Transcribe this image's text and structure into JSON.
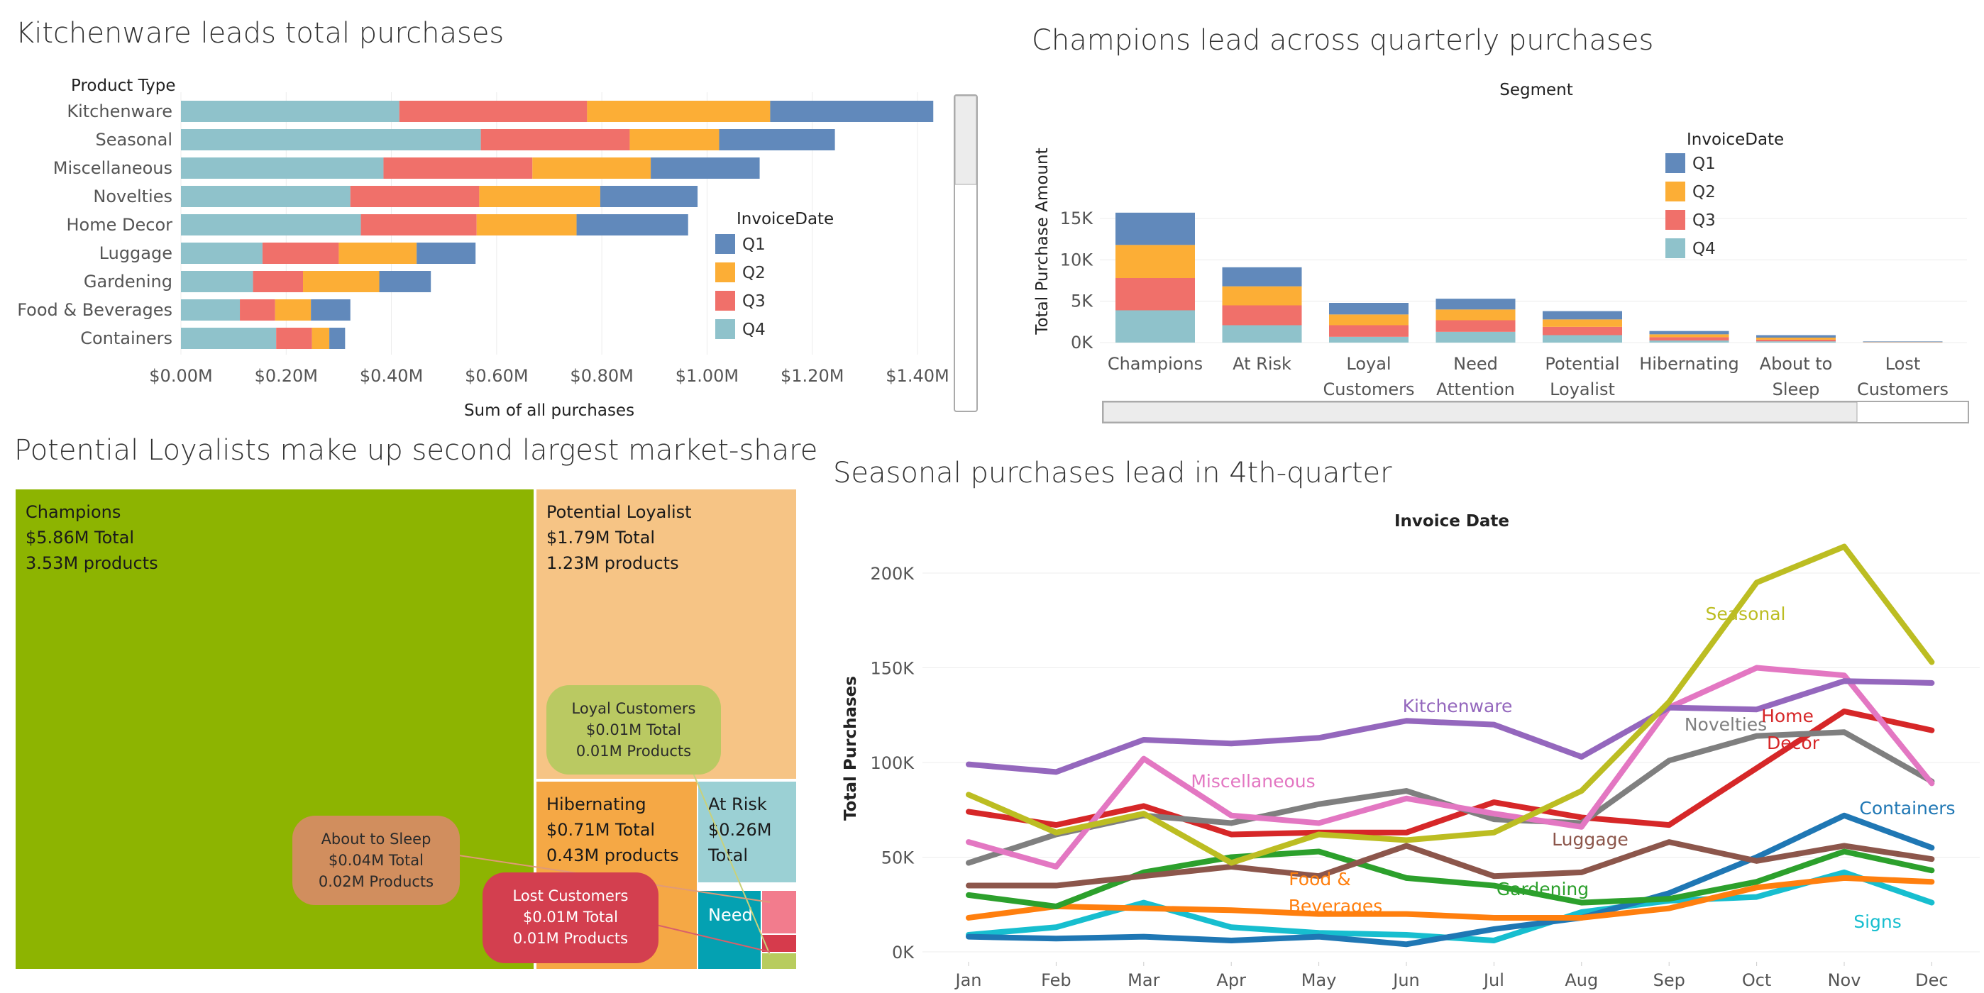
{
  "chart_data": [
    {
      "type": "bar",
      "orientation": "horizontal",
      "stacked": true,
      "title": "Kitchenware leads total purchases",
      "ylabel": "Product Type",
      "xlabel": "Sum of all purchases",
      "xlim": [
        0,
        1.4
      ],
      "xticks": [
        "$0.00M",
        "$0.20M",
        "$0.40M",
        "$0.60M",
        "$0.80M",
        "$1.00M",
        "$1.20M",
        "$1.40M"
      ],
      "legend_title": "InvoiceDate",
      "legend_position": "right",
      "categories": [
        "Kitchenware",
        "Seasonal",
        "Miscellaneous",
        "Novelties",
        "Home Decor",
        "Luggage",
        "Gardening",
        "Food & Beverages",
        "Containers"
      ],
      "series": [
        {
          "name": "Q4",
          "color": "#8fc2cb",
          "values": [
            0.415,
            0.57,
            0.385,
            0.322,
            0.342,
            0.155,
            0.137,
            0.112,
            0.181
          ]
        },
        {
          "name": "Q3",
          "color": "#f0706a",
          "values": [
            0.357,
            0.283,
            0.283,
            0.245,
            0.22,
            0.145,
            0.095,
            0.067,
            0.068
          ]
        },
        {
          "name": "Q2",
          "color": "#fcae36",
          "values": [
            0.348,
            0.17,
            0.225,
            0.23,
            0.19,
            0.148,
            0.145,
            0.068,
            0.033
          ]
        },
        {
          "name": "Q1",
          "color": "#6189bb",
          "values": [
            0.31,
            0.22,
            0.207,
            0.185,
            0.212,
            0.112,
            0.098,
            0.075,
            0.03
          ]
        }
      ],
      "legend_order": [
        "Q1",
        "Q2",
        "Q3",
        "Q4"
      ]
    },
    {
      "type": "bar",
      "stacked": true,
      "title": "Champions lead across quarterly purchases",
      "xlabel": "Segment",
      "ylabel": "Total Purchase Amount",
      "ylim": [
        0,
        16000
      ],
      "yticks": [
        "0K",
        "5K",
        "10K",
        "15K"
      ],
      "legend_title": "InvoiceDate",
      "legend_position": "top-right",
      "categories": [
        "Champions",
        "At Risk",
        "Loyal Customers",
        "Need Attention",
        "Potential Loyalist",
        "Hibernating",
        "About to Sleep",
        "Lost Customers"
      ],
      "series": [
        {
          "name": "Q4",
          "color": "#8fc2cb",
          "values": [
            3900,
            2100,
            700,
            1300,
            900,
            250,
            150,
            40
          ]
        },
        {
          "name": "Q3",
          "color": "#f0706a",
          "values": [
            3900,
            2400,
            1400,
            1400,
            1000,
            400,
            200,
            30
          ]
        },
        {
          "name": "Q2",
          "color": "#fcae36",
          "values": [
            4000,
            2300,
            1300,
            1300,
            900,
            350,
            250,
            30
          ]
        },
        {
          "name": "Q1",
          "color": "#6189bb",
          "values": [
            3900,
            2300,
            1400,
            1300,
            1000,
            400,
            300,
            50
          ]
        }
      ],
      "legend_order": [
        "Q1",
        "Q2",
        "Q3",
        "Q4"
      ]
    },
    {
      "type": "treemap",
      "title": "Potential Loyalists make up second largest market-share",
      "items": [
        {
          "label": "Champions",
          "line2": "$5.86M Total",
          "line3": "3.53M products",
          "color": "#8db401",
          "value": 5.86
        },
        {
          "label": "Potential Loyalist",
          "line2": "$1.79M Total",
          "line3": "1.23M products",
          "color": "#f6c485",
          "value": 1.79
        },
        {
          "label": "Hibernating",
          "line2": "$0.71M Total",
          "line3": "0.43M products",
          "color": "#f5a845",
          "value": 0.71
        },
        {
          "label": "At Risk",
          "line2": "$0.26M",
          "line3": "Total",
          "color": "#9bd0d4",
          "value": 0.26
        },
        {
          "label": "Need",
          "line2": "",
          "line3": "",
          "color": "#04a1b2",
          "value": 0.12
        },
        {
          "label": "Loyal Customers",
          "line2": "$0.01M Total",
          "line3": "0.01M Products",
          "color": "#bac962",
          "value": 0.01
        },
        {
          "label": "About to Sleep",
          "line2": "$0.04M Total",
          "line3": "0.02M Products",
          "color": "#d18e5e",
          "value": 0.04
        },
        {
          "label": "Lost Customers",
          "line2": "$0.01M Total",
          "line3": "0.01M Products",
          "color": "#d33f4f",
          "value": 0.01
        }
      ],
      "extra_colors": [
        "#f27c8d",
        "#d63b4c",
        "#b8cc5e"
      ]
    },
    {
      "type": "line",
      "title": "Seasonal purchases lead in 4th-quarter",
      "xlabel": "Invoice Date",
      "ylabel": "Total Purchases",
      "x": [
        "Jan",
        "Feb",
        "Mar",
        "Apr",
        "May",
        "Jun",
        "Jul",
        "Aug",
        "Sep",
        "Oct",
        "Nov",
        "Dec"
      ],
      "ylim": [
        0,
        220000
      ],
      "yticks": [
        "0K",
        "50K",
        "100K",
        "150K",
        "200K"
      ],
      "series": [
        {
          "name": "Seasonal",
          "color": "#bcbd22",
          "values": [
            83000,
            63000,
            73000,
            47000,
            62000,
            59000,
            63000,
            85000,
            132000,
            195000,
            214000,
            153000
          ]
        },
        {
          "name": "Kitchenware",
          "color": "#9467bd",
          "values": [
            99000,
            95000,
            112000,
            110000,
            113000,
            122000,
            120000,
            103000,
            129000,
            128000,
            143000,
            142000
          ]
        },
        {
          "name": "Miscellaneous",
          "color": "#e377c2",
          "values": [
            58000,
            45000,
            102000,
            72000,
            68000,
            81000,
            73000,
            66000,
            129000,
            150000,
            146000,
            89000
          ]
        },
        {
          "name": "Novelties",
          "color": "#7f7f7f",
          "values": [
            47000,
            62000,
            72000,
            68000,
            78000,
            85000,
            70000,
            68000,
            101000,
            114000,
            116000,
            90000
          ]
        },
        {
          "name": "Home Decor",
          "color": "#d62728",
          "values": [
            74000,
            67000,
            77000,
            62000,
            63000,
            63000,
            79000,
            71000,
            67000,
            97000,
            127000,
            117000
          ]
        },
        {
          "name": "Luggage",
          "color": "#8c564b",
          "values": [
            35000,
            35000,
            40000,
            45000,
            40000,
            56000,
            40000,
            42000,
            58000,
            48000,
            56000,
            49000
          ]
        },
        {
          "name": "Gardening",
          "color": "#2ca02c",
          "values": [
            30000,
            24000,
            42000,
            50000,
            53000,
            39000,
            35000,
            26000,
            28000,
            37000,
            53000,
            43000
          ]
        },
        {
          "name": "Food & Beverages",
          "color": "#ff7f0e",
          "values": [
            18000,
            24000,
            23000,
            22000,
            20000,
            20000,
            18000,
            18000,
            23000,
            34000,
            39000,
            37000
          ]
        },
        {
          "name": "Containers",
          "color": "#1f77b4",
          "values": [
            8000,
            7000,
            8000,
            6000,
            8000,
            4000,
            12000,
            18000,
            31000,
            50000,
            72000,
            55000
          ]
        },
        {
          "name": "Signs",
          "color": "#17becf",
          "values": [
            9000,
            13000,
            26000,
            13000,
            10000,
            9000,
            6000,
            21000,
            27000,
            29000,
            42000,
            26000
          ]
        }
      ],
      "line_labels": [
        {
          "name": "Seasonal",
          "text": "Seasonal"
        },
        {
          "name": "Kitchenware",
          "text": "Kitchenware"
        },
        {
          "name": "Miscellaneous",
          "text": "Miscellaneous"
        },
        {
          "name": "Novelties",
          "text": "Novelties"
        },
        {
          "name": "Home Decor",
          "text1": "Home",
          "text2": "Decor"
        },
        {
          "name": "Luggage",
          "text": "Luggage"
        },
        {
          "name": "Gardening",
          "text": "Gardening"
        },
        {
          "name": "Food & Beverages",
          "text1": "Food &",
          "text2": "Beverages"
        },
        {
          "name": "Containers",
          "text": "Containers"
        },
        {
          "name": "Signs",
          "text": "Signs"
        }
      ]
    }
  ]
}
